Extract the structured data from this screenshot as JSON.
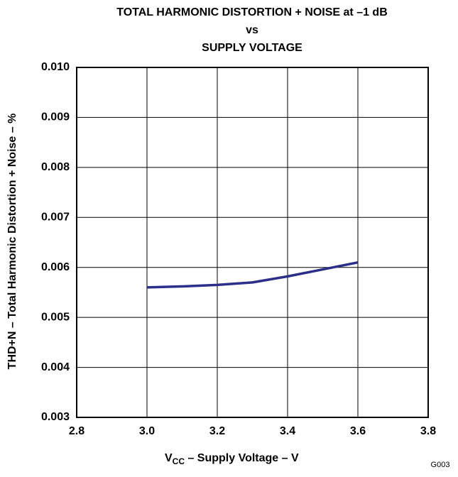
{
  "chart_data": {
    "type": "line",
    "title": [
      "TOTAL HARMONIC DISTORTION + NOISE at –1 dB",
      "vs",
      "SUPPLY VOLTAGE"
    ],
    "xlabel": {
      "main": "V",
      "sub": "CC",
      "rest": " – Supply Voltage – V"
    },
    "ylabel": "THD+N – Total Harmonic Distortion + Noise – %",
    "annotation": "G003",
    "x": [
      3.0,
      3.1,
      3.2,
      3.3,
      3.4,
      3.5,
      3.6
    ],
    "series": [
      {
        "color": "#2b2f8a",
        "values": [
          0.0056,
          0.00562,
          0.00565,
          0.0057,
          0.00582,
          0.00596,
          0.0061
        ]
      }
    ],
    "xlim": [
      2.8,
      3.8
    ],
    "xticks": [
      2.8,
      {
        "value": 3,
        "label": "3.0"
      },
      3.2,
      3.4,
      3.6,
      3.8
    ],
    "ylim": [
      0.003,
      0.01
    ],
    "yticks": [
      0.003,
      0.004,
      0.005,
      0.006,
      0.007,
      0.008,
      0.009,
      {
        "value": 0.01,
        "label": "0.010"
      }
    ],
    "grid": true
  }
}
